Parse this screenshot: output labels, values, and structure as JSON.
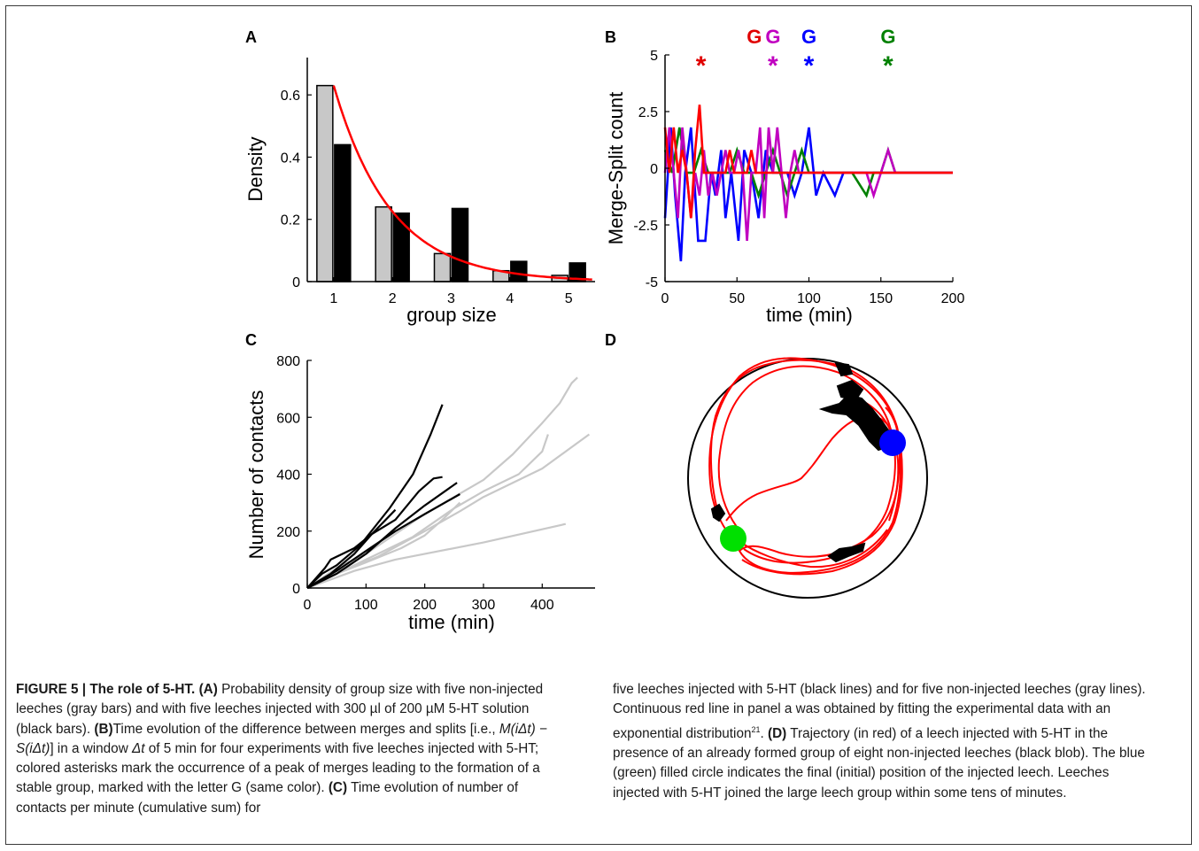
{
  "panels": {
    "A": {
      "label": "A",
      "xlabel": "group size",
      "ylabel": "Density",
      "xticks": [
        "1",
        "2",
        "3",
        "4",
        "5"
      ],
      "yticks": [
        "0",
        "0.2",
        "0.4",
        "0.6"
      ]
    },
    "B": {
      "label": "B",
      "xlabel": "time (min)",
      "ylabel": "Merge-Split count",
      "xticks": [
        "0",
        "50",
        "100",
        "150",
        "200"
      ],
      "yticks": [
        "-5",
        "-2.5",
        "0",
        "2.5",
        "5"
      ],
      "group_marker": "G",
      "peak_marker": "*"
    },
    "C": {
      "label": "C",
      "xlabel": "time (min)",
      "ylabel": "Number of contacts",
      "xticks": [
        "0",
        "100",
        "200",
        "300",
        "400"
      ],
      "yticks": [
        "0",
        "200",
        "400",
        "600",
        "800"
      ]
    },
    "D": {
      "label": "D"
    }
  },
  "chart_data": [
    {
      "panel": "A",
      "type": "bar",
      "categories": [
        "1",
        "2",
        "3",
        "4",
        "5"
      ],
      "series": [
        {
          "values": [
            0.63,
            0.24,
            0.09,
            0.035,
            0.02
          ],
          "color": "#c8c8c8"
        },
        {
          "values": [
            0.44,
            0.22,
            0.235,
            0.065,
            0.06
          ],
          "color": "#000000"
        }
      ],
      "fit": {
        "type": "exponential",
        "amplitude": 0.63,
        "decay": 1.03,
        "x_start": 1,
        "x_end": 5.4,
        "color": "#ff0000"
      },
      "xlim": [
        0.55,
        5.45
      ],
      "ylim": [
        0,
        0.72
      ]
    },
    {
      "panel": "B",
      "type": "line",
      "xlim": [
        0,
        200
      ],
      "ylim": [
        -5,
        5
      ],
      "series": [
        {
          "color": "#0000ff",
          "x": [
            0,
            4,
            7,
            11,
            14,
            18,
            23,
            28,
            32,
            35,
            39,
            42,
            46,
            51,
            55,
            60,
            65,
            70,
            75,
            80,
            85,
            90,
            95,
            100,
            105,
            110,
            118,
            124,
            130,
            160,
            200
          ],
          "y": [
            -2.2,
            1.8,
            -1.2,
            -4.1,
            -0.2,
            1.8,
            -3.2,
            -3.2,
            -0.2,
            -1.2,
            0.8,
            -2.2,
            -0.2,
            -3.2,
            0.8,
            -0.2,
            -2.2,
            0.8,
            -0.2,
            -0.2,
            -0.2,
            -1.2,
            -0.2,
            1.8,
            -1.2,
            -0.2,
            -1.2,
            -0.2,
            -0.2,
            -0.2,
            -0.2
          ]
        },
        {
          "color": "#008000",
          "x": [
            0,
            5,
            10,
            15,
            20,
            25,
            30,
            35,
            40,
            45,
            50,
            55,
            60,
            65,
            70,
            75,
            80,
            85,
            90,
            95,
            100,
            110,
            120,
            130,
            140,
            145,
            150,
            155,
            160,
            200
          ],
          "y": [
            0.8,
            -0.2,
            1.8,
            -0.2,
            -0.2,
            0.8,
            -0.2,
            -0.2,
            -0.2,
            -0.2,
            0.8,
            -0.2,
            -0.2,
            -1.2,
            -0.2,
            0.8,
            -0.2,
            -1.2,
            -0.2,
            0.8,
            -0.2,
            -0.2,
            -0.2,
            -0.2,
            -1.2,
            -0.2,
            -0.2,
            0.8,
            -0.2,
            -0.2
          ]
        },
        {
          "color": "#c000c0",
          "x": [
            0,
            3,
            6,
            9,
            12,
            15,
            18,
            21,
            24,
            27,
            30,
            33,
            36,
            39,
            42,
            45,
            48,
            51,
            54,
            57,
            60,
            63,
            66,
            69,
            72,
            75,
            78,
            81,
            84,
            87,
            90,
            93,
            96,
            100,
            110,
            120,
            130,
            135,
            140,
            145,
            150,
            155,
            160,
            200
          ],
          "y": [
            -0.2,
            1.8,
            -0.2,
            -2.2,
            1.8,
            -0.2,
            -2.2,
            -0.2,
            -1.2,
            0.8,
            -1.2,
            -0.2,
            -1.2,
            -0.2,
            0.8,
            -0.2,
            -0.2,
            0.8,
            -0.2,
            -3.2,
            -0.2,
            -0.2,
            1.8,
            -2.2,
            1.8,
            -0.2,
            1.8,
            -0.2,
            -2.2,
            -0.2,
            0.8,
            -0.2,
            -0.2,
            -0.2,
            -0.2,
            -0.2,
            -0.2,
            -0.2,
            -0.2,
            -1.2,
            -0.2,
            0.8,
            -0.2,
            -0.2
          ]
        },
        {
          "color": "#ff0000",
          "x": [
            0,
            3,
            6,
            9,
            12,
            15,
            18,
            21,
            24,
            27,
            30,
            33,
            36,
            39,
            42,
            45,
            48,
            51,
            54,
            57,
            60,
            63,
            66,
            69,
            72,
            200
          ],
          "y": [
            1.8,
            -0.2,
            1.8,
            -0.2,
            0.8,
            -0.2,
            -2.2,
            0.8,
            2.8,
            -0.2,
            -0.2,
            -0.2,
            -0.2,
            -0.2,
            -0.2,
            0.8,
            -0.2,
            -0.2,
            -0.2,
            -0.2,
            0.8,
            -0.2,
            -0.2,
            -0.2,
            -0.2,
            -0.2
          ]
        }
      ],
      "markers": [
        {
          "x": 25,
          "color": "#e00000",
          "group": false
        },
        {
          "x": 62,
          "color": "#e00000",
          "group": true
        },
        {
          "x": 75,
          "color": "#c000c0",
          "group": true
        },
        {
          "x": 100,
          "color": "#0000ff",
          "group": true
        },
        {
          "x": 155,
          "color": "#008000",
          "group": true
        }
      ]
    },
    {
      "panel": "C",
      "type": "line",
      "xlim": [
        0,
        490
      ],
      "ylim": [
        0,
        800
      ],
      "series": [
        {
          "color": "#c8c8c8",
          "points": [
            [
              0,
              0
            ],
            [
              50,
              70
            ],
            [
              100,
              120
            ],
            [
              150,
              190
            ],
            [
              200,
              260
            ],
            [
              250,
              320
            ],
            [
              300,
              380
            ],
            [
              350,
              470
            ],
            [
              400,
              580
            ],
            [
              430,
              650
            ],
            [
              450,
              720
            ],
            [
              460,
              740
            ]
          ]
        },
        {
          "color": "#c8c8c8",
          "points": [
            [
              0,
              0
            ],
            [
              60,
              60
            ],
            [
              120,
              120
            ],
            [
              180,
              180
            ],
            [
              250,
              280
            ],
            [
              300,
              340
            ],
            [
              360,
              400
            ],
            [
              400,
              480
            ],
            [
              410,
              540
            ]
          ]
        },
        {
          "color": "#c8c8c8",
          "points": [
            [
              0,
              0
            ],
            [
              50,
              50
            ],
            [
              120,
              110
            ],
            [
              200,
              200
            ],
            [
              260,
              270
            ],
            [
              300,
              320
            ],
            [
              400,
              420
            ],
            [
              480,
              540
            ]
          ]
        },
        {
          "color": "#c8c8c8",
          "points": [
            [
              0,
              0
            ],
            [
              50,
              50
            ],
            [
              100,
              90
            ],
            [
              160,
              140
            ],
            [
              200,
              185
            ],
            [
              230,
              240
            ],
            [
              260,
              300
            ]
          ]
        },
        {
          "color": "#c8c8c8",
          "points": [
            [
              0,
              0
            ],
            [
              80,
              60
            ],
            [
              150,
              100
            ],
            [
              300,
              160
            ],
            [
              440,
              225
            ]
          ]
        },
        {
          "color": "#000000",
          "points": [
            [
              0,
              0
            ],
            [
              25,
              50
            ],
            [
              50,
              80
            ],
            [
              90,
              150
            ],
            [
              140,
              280
            ],
            [
              180,
              400
            ],
            [
              210,
              540
            ],
            [
              230,
              645
            ]
          ]
        },
        {
          "color": "#000000",
          "points": [
            [
              0,
              0
            ],
            [
              30,
              70
            ],
            [
              40,
              100
            ],
            [
              80,
              140
            ],
            [
              110,
              190
            ],
            [
              150,
              240
            ],
            [
              190,
              340
            ],
            [
              215,
              385
            ],
            [
              230,
              390
            ]
          ]
        },
        {
          "color": "#000000",
          "points": [
            [
              0,
              0
            ],
            [
              50,
              50
            ],
            [
              100,
              120
            ],
            [
              150,
              210
            ],
            [
              200,
              290
            ],
            [
              255,
              370
            ]
          ]
        },
        {
          "color": "#000000",
          "points": [
            [
              0,
              0
            ],
            [
              50,
              60
            ],
            [
              100,
              130
            ],
            [
              150,
              200
            ],
            [
              200,
              260
            ],
            [
              260,
              330
            ]
          ]
        },
        {
          "color": "#000000",
          "points": [
            [
              0,
              0
            ],
            [
              40,
              50
            ],
            [
              80,
              120
            ],
            [
              110,
              190
            ],
            [
              150,
              275
            ]
          ]
        }
      ]
    }
  ],
  "panel_d_colors": {
    "path": "#ff0000",
    "blob": "#000000",
    "final": "#0000ff",
    "initial": "#00e000",
    "arena": "#000000"
  },
  "caption": {
    "left": {
      "fig_id": "FIGURE 5 | The role of 5-HT.",
      "A_tag": "(A)",
      "A_text": "Probability density of group size with five non-injected leeches (gray bars) and with five leeches injected with 300 µl of 200 µM 5-HT solution (black bars).",
      "B_tag": "(B)",
      "B_text1": "Time evolution of the difference between merges and splits [i.e., ",
      "B_formula": "M(iΔt) − S(iΔt)",
      "B_text2": "] in a window ",
      "B_dt": "Δt",
      "B_text3": " of 5 min for four experiments with five leeches injected with 5-HT; colored asterisks mark the occurrence of a peak of merges leading to the formation of a stable group, marked with the letter G (same color).",
      "C_tag": "(C)",
      "C_text": "Time evolution of number of contacts per minute (cumulative sum) for"
    },
    "right": {
      "C_cont": "five leeches injected with 5-HT (black lines) and for five non-injected leeches (gray lines). Continuous red line in panel a was obtained by fitting the experimental data with an exponential distribution",
      "ref": "21",
      "C_end": ".",
      "D_tag": "(D)",
      "D_text": "Trajectory (in red) of a leech injected with 5-HT in the presence of an already formed group of eight non-injected leeches (black blob). The blue (green) filled circle indicates the final (initial) position of the injected leech. Leeches injected with 5-HT joined the large leech group within some tens of minutes."
    }
  }
}
